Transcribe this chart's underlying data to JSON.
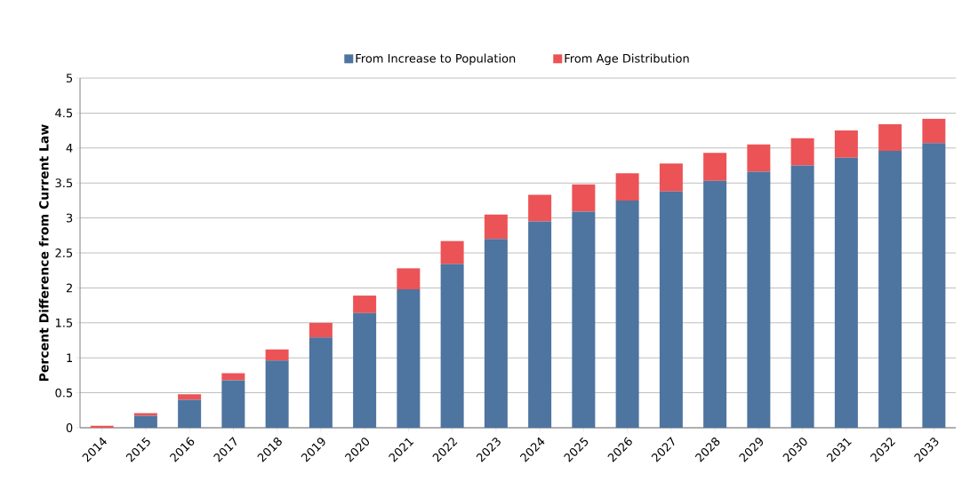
{
  "chart_data": {
    "type": "bar",
    "stacked": true,
    "ylabel": "Percent Difference from Current Law",
    "categories": [
      "2014",
      "2015",
      "2016",
      "2017",
      "2018",
      "2019",
      "2020",
      "2021",
      "2022",
      "2023",
      "2024",
      "2025",
      "2026",
      "2027",
      "2028",
      "2029",
      "2030",
      "2031",
      "2032",
      "2033"
    ],
    "series": [
      {
        "name": "From Increase to Population",
        "color": "#4e74a0",
        "values": [
          null,
          0.17,
          0.4,
          0.68,
          0.96,
          1.29,
          1.64,
          1.98,
          2.34,
          2.7,
          2.95,
          3.09,
          3.25,
          3.38,
          3.53,
          3.66,
          3.75,
          3.86,
          3.96,
          4.07
        ]
      },
      {
        "name": "From Age Distribution",
        "color": "#ec5356",
        "values": [
          0.03,
          0.04,
          0.08,
          0.1,
          0.16,
          0.21,
          0.25,
          0.3,
          0.33,
          0.35,
          0.38,
          0.39,
          0.39,
          0.4,
          0.4,
          0.39,
          0.39,
          0.39,
          0.38,
          0.35
        ]
      }
    ],
    "ylim": [
      0,
      5
    ],
    "yticks": [
      0,
      0.5,
      1,
      1.5,
      2,
      2.5,
      3,
      3.5,
      4,
      4.5,
      5
    ],
    "grid": "y",
    "legend": "top"
  }
}
